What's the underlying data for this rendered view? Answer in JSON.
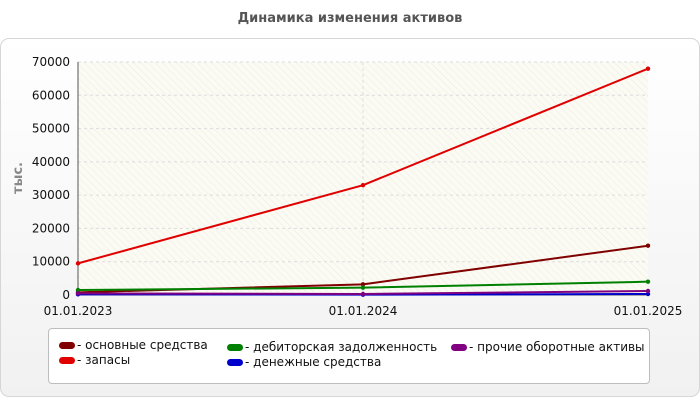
{
  "chart_data": {
    "type": "line",
    "title": "Динамика изменения активов",
    "xlabel": "",
    "ylabel": "тыс.",
    "categories": [
      "01.01.2023",
      "01.01.2024",
      "01.01.2025"
    ],
    "ylim": [
      0,
      70000
    ],
    "yticks": [
      0,
      10000,
      20000,
      30000,
      40000,
      50000,
      60000,
      70000
    ],
    "grid": true,
    "legend_position": "bottom",
    "series": [
      {
        "name": "основные средства",
        "color": "#800000",
        "values": [
          800,
          3200,
          14800
        ]
      },
      {
        "name": "запасы",
        "color": "#e00000",
        "values": [
          9500,
          33000,
          68000
        ]
      },
      {
        "name": "дебиторская задолженность",
        "color": "#008000",
        "values": [
          1500,
          2200,
          4000
        ]
      },
      {
        "name": "денежные средства",
        "color": "#0000cc",
        "values": [
          200,
          100,
          300
        ]
      },
      {
        "name": "прочие оборотные активы",
        "color": "#800080",
        "values": [
          500,
          300,
          1200
        ]
      }
    ]
  }
}
